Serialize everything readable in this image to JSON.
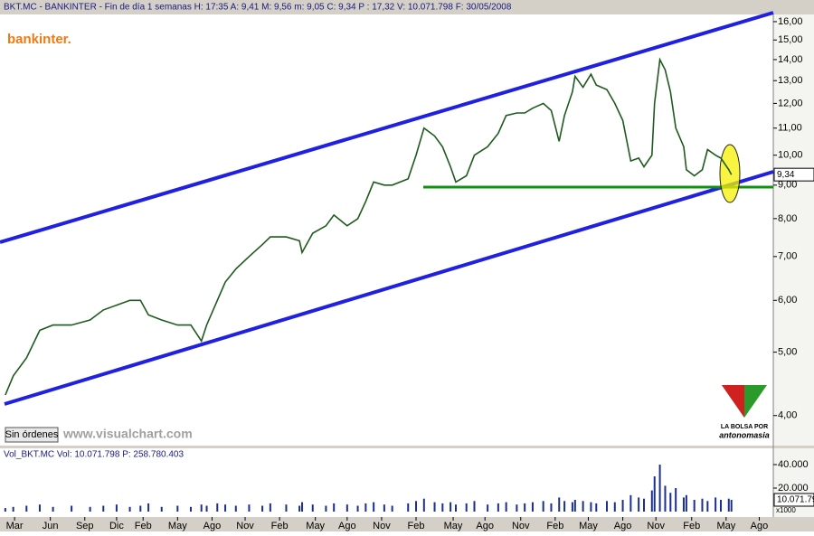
{
  "chart_data": [
    {
      "type": "line",
      "title": "BKT.MC - BANKINTER - Fin de día 1 semanas H: 17:35 A: 9,41 M: 9,56 m: 9,05 C: 9,34 P : 17,32 V: 10.071.798 F: 30/05/2008",
      "yscale": "log",
      "color": "#1e5a1e",
      "x": [
        2,
        5,
        10,
        15,
        20,
        27,
        34,
        39,
        44,
        49,
        53,
        56,
        61,
        67,
        72,
        76,
        78,
        82,
        85,
        89,
        94,
        99,
        102,
        108,
        113,
        114,
        118,
        123,
        126,
        131,
        135,
        138,
        141,
        145,
        148,
        154,
        157,
        160,
        164,
        167,
        170,
        172,
        176,
        179,
        184,
        188,
        191,
        195,
        198,
        201,
        205,
        208,
        211,
        213,
        216,
        217,
        220,
        223,
        225,
        229,
        232,
        235,
        238,
        241,
        243,
        246,
        247,
        249,
        251,
        253,
        255,
        258,
        259,
        262,
        265,
        267,
        270,
        272,
        275,
        276
      ],
      "values": [
        4.3,
        4.6,
        4.9,
        5.4,
        5.5,
        5.5,
        5.6,
        5.8,
        5.9,
        6.0,
        6.0,
        5.7,
        5.6,
        5.5,
        5.5,
        5.2,
        5.5,
        6.0,
        6.4,
        6.7,
        7.0,
        7.3,
        7.5,
        7.5,
        7.4,
        7.1,
        7.6,
        7.8,
        8.1,
        7.8,
        8.0,
        8.5,
        9.1,
        9.0,
        9.0,
        9.2,
        10.0,
        11.0,
        10.7,
        10.3,
        9.6,
        9.1,
        9.3,
        10.0,
        10.3,
        10.8,
        11.5,
        11.6,
        11.6,
        11.8,
        12.0,
        11.7,
        10.5,
        11.5,
        12.5,
        13.2,
        12.7,
        13.3,
        12.8,
        12.6,
        12.0,
        11.3,
        9.8,
        9.9,
        9.6,
        10.0,
        12.0,
        14.0,
        13.5,
        12.5,
        11.0,
        10.3,
        9.5,
        9.3,
        9.5,
        10.2,
        10.0,
        9.9,
        9.5,
        9.34
      ],
      "last_value_label": "9,34",
      "xlim": [
        0,
        291.8
      ],
      "ylim": [
        3.61,
        16.41
      ],
      "yticks": [
        {
          "value": 16,
          "label": "16,00"
        },
        {
          "value": 15,
          "label": "15,00"
        },
        {
          "value": 14,
          "label": "14,00"
        },
        {
          "value": 13,
          "label": "13,00"
        },
        {
          "value": 12,
          "label": "12,00"
        },
        {
          "value": 11,
          "label": "11,00"
        },
        {
          "value": 10,
          "label": "10,00"
        },
        {
          "value": 9,
          "label": "9,00"
        },
        {
          "value": 8,
          "label": "8,00"
        },
        {
          "value": 7,
          "label": "7,00"
        },
        {
          "value": 6,
          "label": "6,00"
        },
        {
          "value": 5,
          "label": "5,00"
        },
        {
          "value": 4,
          "label": "4,00"
        }
      ]
    },
    {
      "type": "bar",
      "title": "Vol_BKT.MC Vol: 10.071.798 P: 258.780.403",
      "color": "#1c2f8c",
      "x": [
        2,
        5,
        10,
        15,
        20,
        27,
        34,
        39,
        44,
        49,
        53,
        56,
        61,
        67,
        72,
        76,
        78,
        82,
        85,
        89,
        94,
        99,
        102,
        108,
        113,
        114,
        118,
        123,
        126,
        131,
        135,
        138,
        141,
        145,
        148,
        154,
        157,
        160,
        164,
        167,
        170,
        172,
        176,
        179,
        184,
        188,
        191,
        195,
        198,
        201,
        205,
        208,
        211,
        213,
        216,
        217,
        220,
        223,
        225,
        229,
        232,
        235,
        238,
        241,
        243,
        246,
        247,
        249,
        251,
        253,
        255,
        258,
        259,
        262,
        265,
        267,
        270,
        272,
        275,
        276
      ],
      "values": [
        3000,
        4000,
        5000,
        6000,
        4000,
        5000,
        4000,
        5000,
        6000,
        4000,
        5000,
        7000,
        4000,
        5000,
        4000,
        6000,
        5000,
        7000,
        6000,
        5000,
        6000,
        5000,
        7000,
        6000,
        5000,
        8000,
        6000,
        5000,
        7000,
        6000,
        5000,
        7000,
        8000,
        6000,
        5000,
        7000,
        9000,
        11000,
        8000,
        7000,
        8000,
        6000,
        7000,
        9000,
        6000,
        7000,
        8000,
        6000,
        7000,
        8000,
        9000,
        7000,
        12000,
        9000,
        8000,
        10000,
        9000,
        8000,
        7000,
        9000,
        8000,
        10000,
        14000,
        12000,
        11000,
        18000,
        30000,
        40000,
        22000,
        16000,
        20000,
        12000,
        14000,
        10000,
        11000,
        9000,
        12000,
        10000,
        11000,
        10000
      ],
      "last_value_label": "10.071.79",
      "y_unit_label": "x1000",
      "xlim": [
        0,
        291.8
      ],
      "ylim": [
        0,
        50000
      ],
      "yticks": [
        {
          "value": 40000,
          "label": "40.000"
        },
        {
          "value": 20000,
          "label": "20.000"
        }
      ],
      "xticks": [
        {
          "value": 5.5,
          "label": "Mar"
        },
        {
          "value": 19,
          "label": "Jun"
        },
        {
          "value": 32,
          "label": "Sep"
        },
        {
          "value": 44,
          "label": "Dic"
        },
        {
          "value": 54,
          "label": "Feb"
        },
        {
          "value": 67,
          "label": "May"
        },
        {
          "value": 80,
          "label": "Ago"
        },
        {
          "value": 92.5,
          "label": "Nov"
        },
        {
          "value": 105.5,
          "label": "Feb"
        },
        {
          "value": 119,
          "label": "May"
        },
        {
          "value": 131,
          "label": "Ago"
        },
        {
          "value": 144,
          "label": "Nov"
        },
        {
          "value": 157,
          "label": "Feb"
        },
        {
          "value": 171,
          "label": "May"
        },
        {
          "value": 183,
          "label": "Ago"
        },
        {
          "value": 196.5,
          "label": "Nov"
        },
        {
          "value": 209.5,
          "label": "Feb"
        },
        {
          "value": 222,
          "label": "May"
        },
        {
          "value": 235,
          "label": "Ago"
        },
        {
          "value": 247.5,
          "label": "Nov"
        },
        {
          "value": 261,
          "label": "Feb"
        },
        {
          "value": 274,
          "label": "May"
        },
        {
          "value": 286.5,
          "label": "Ago"
        }
      ]
    }
  ],
  "labels": {
    "logo": "bankinter.",
    "button": "Sin órdenes",
    "site": "www.visualchart.com",
    "badge_top": "LA BOLSA POR",
    "badge_bottom": "antonomasia"
  }
}
